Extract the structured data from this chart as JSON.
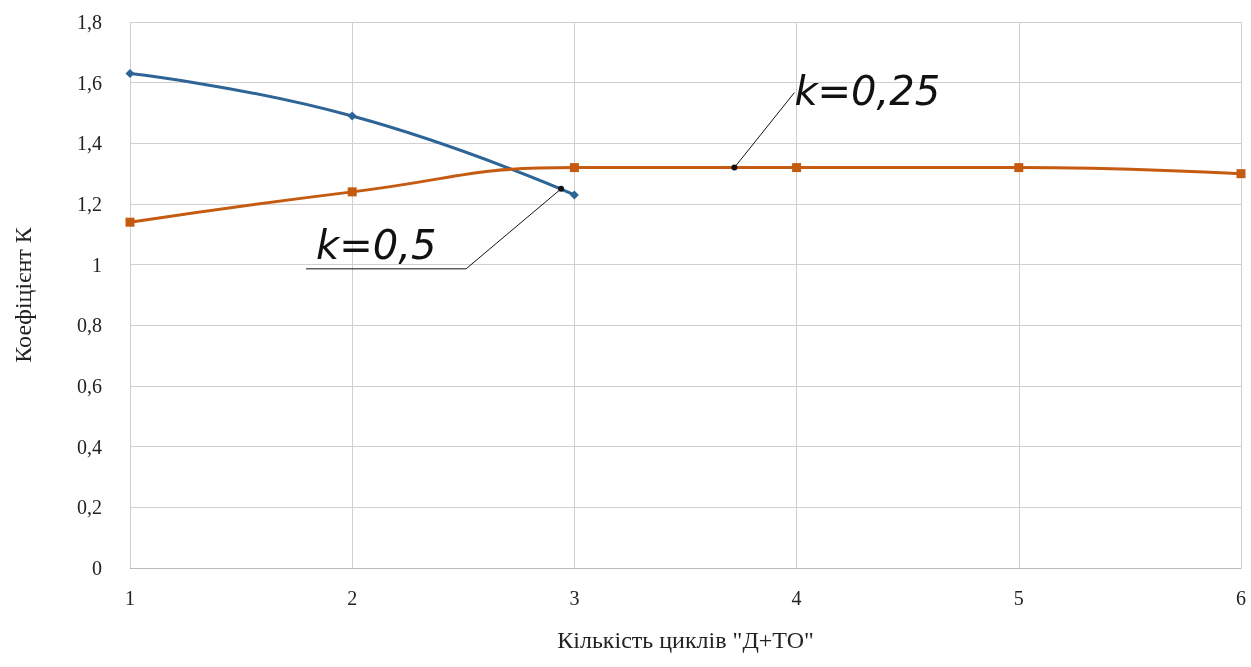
{
  "chart_data": {
    "type": "line",
    "xlabel": "Кількість циклів \"Д+ТО\"",
    "ylabel": "Коефіцієнт К",
    "x": [
      1,
      2,
      3,
      4,
      5,
      6
    ],
    "series": [
      {
        "color": "#2e6496",
        "marker": "diamond",
        "x": [
          1,
          2,
          3
        ],
        "values": [
          1.63,
          1.49,
          1.23
        ]
      },
      {
        "color": "#c55a11",
        "marker": "square",
        "values": [
          1.14,
          1.24,
          1.32,
          1.32,
          1.32,
          1.3
        ]
      }
    ],
    "xlim": [
      1,
      6
    ],
    "xticks": [
      1,
      2,
      3,
      4,
      5,
      6
    ],
    "ylim": [
      0,
      1.8
    ],
    "yticks": [
      0,
      {
        "value": 0.2,
        "label": "0,2"
      },
      {
        "value": 0.4,
        "label": "0,4"
      },
      {
        "value": 0.6,
        "label": "0,6"
      },
      {
        "value": 0.8,
        "label": "0,8"
      },
      1,
      {
        "value": 1.2,
        "label": "1,2"
      },
      {
        "value": 1.4,
        "label": "1,4"
      },
      {
        "value": 1.6,
        "label": "1,6"
      },
      {
        "value": 1.8,
        "label": "1,8"
      }
    ],
    "grid": true,
    "line_style": "solid",
    "annotations": [
      {
        "text": "k=0,5",
        "x": 2.94,
        "y": 1.25
      },
      {
        "text": "k=0,25",
        "x": 3.72,
        "y": 1.32
      }
    ]
  }
}
